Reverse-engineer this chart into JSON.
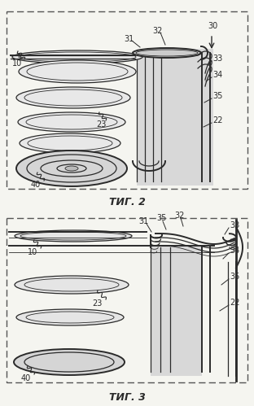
{
  "fig_width": 3.12,
  "fig_height": 4.99,
  "dpi": 100,
  "bg_color": "#f5f5f0",
  "line_color": "#2a2a2a",
  "fig2_title": "ΤИГ. 2",
  "fig3_title": "ΤИГ. 3"
}
